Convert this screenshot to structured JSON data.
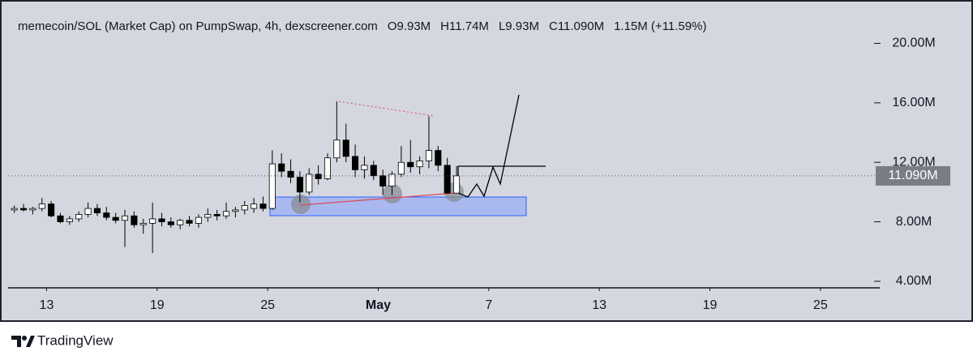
{
  "chart_data": {
    "type": "candlestick",
    "title": "memecoin/SOL (Market Cap) on PumpSwap, 4h, dexscreener.com",
    "ohlc_summary": [
      "O9.93M",
      "H11.74M",
      "L9.93M",
      "C11.090M",
      "1.15M (+11.59%)"
    ],
    "x": [
      0.25,
      0.75,
      1.25,
      1.75,
      2.25,
      2.75,
      3.25,
      3.75,
      4.25,
      4.75,
      5.25,
      5.75,
      6.25,
      6.75,
      7.25,
      7.75,
      8.25,
      8.75,
      9.25,
      9.75,
      10.25,
      10.75,
      11.25,
      11.75,
      12.25,
      12.75,
      13.25,
      13.75,
      14.25,
      14.75,
      15.25,
      15.75,
      16.25,
      16.75,
      17.25,
      17.75,
      18.25,
      18.75,
      19.25,
      19.75,
      20.25,
      20.75,
      21.25,
      21.75,
      22.25,
      22.75,
      23.25,
      23.75,
      24.25
    ],
    "open": [
      8.8,
      8.9,
      8.8,
      8.9,
      9.2,
      8.4,
      8.0,
      8.2,
      8.5,
      8.9,
      8.6,
      8.3,
      8.1,
      8.4,
      7.8,
      7.9,
      8.2,
      8.0,
      7.8,
      8.1,
      7.9,
      8.3,
      8.5,
      8.4,
      8.7,
      8.8,
      8.9,
      9.2,
      8.9,
      11.9,
      11.4,
      11.0,
      10.0,
      11.2,
      10.9,
      12.3,
      13.5,
      12.4,
      11.5,
      11.8,
      11.1,
      10.4,
      11.2,
      12.0,
      11.7,
      12.1,
      12.8,
      11.8,
      9.93
    ],
    "high": [
      9.1,
      9.2,
      9.0,
      9.6,
      9.4,
      8.6,
      8.4,
      8.7,
      9.3,
      9.2,
      9.0,
      8.6,
      8.8,
      8.7,
      8.2,
      9.3,
      8.6,
      8.3,
      8.2,
      8.4,
      8.5,
      8.9,
      8.8,
      9.3,
      9.0,
      9.4,
      9.6,
      9.7,
      12.8,
      12.6,
      12.2,
      11.4,
      11.6,
      11.8,
      12.6,
      16.1,
      14.6,
      13.2,
      12.4,
      12.1,
      11.5,
      11.4,
      13.1,
      13.5,
      12.4,
      15.1,
      13.1,
      12.3,
      11.74
    ],
    "low": [
      8.6,
      8.7,
      8.5,
      8.7,
      8.3,
      7.9,
      7.8,
      8.0,
      8.3,
      8.4,
      8.1,
      7.9,
      6.3,
      7.6,
      7.2,
      5.9,
      7.7,
      7.6,
      7.5,
      7.7,
      7.6,
      8.0,
      8.1,
      8.2,
      8.3,
      8.5,
      8.6,
      8.7,
      8.8,
      11.0,
      10.6,
      9.3,
      9.8,
      10.5,
      10.8,
      12.0,
      12.0,
      11.0,
      10.9,
      10.8,
      9.8,
      9.8,
      11.0,
      11.3,
      11.2,
      11.6,
      11.4,
      9.9,
      9.93
    ],
    "close": [
      8.9,
      8.8,
      8.9,
      9.2,
      8.4,
      8.0,
      8.2,
      8.5,
      8.9,
      8.6,
      8.3,
      8.1,
      8.4,
      7.8,
      7.9,
      8.2,
      8.0,
      7.8,
      8.1,
      7.9,
      8.3,
      8.5,
      8.4,
      8.7,
      8.8,
      9.1,
      9.2,
      8.9,
      11.9,
      11.4,
      11.0,
      10.0,
      11.2,
      10.9,
      12.3,
      13.5,
      12.4,
      11.5,
      11.8,
      11.1,
      10.4,
      11.2,
      12.0,
      11.7,
      12.1,
      12.8,
      11.8,
      9.93,
      11.09
    ],
    "up_color": "#ffffff",
    "down_color": "#000000",
    "wick_color": "#000000",
    "xlim": [
      0,
      47
    ],
    "xticks": [
      {
        "value": 2,
        "label": "13"
      },
      {
        "value": 8,
        "label": "19"
      },
      {
        "value": 14,
        "label": "25"
      },
      {
        "value": 20,
        "label": "May"
      },
      {
        "value": 26,
        "label": "7"
      },
      {
        "value": 32,
        "label": "13"
      },
      {
        "value": 38,
        "label": "19"
      },
      {
        "value": 44,
        "label": "25"
      }
    ],
    "ylim": [
      3.56,
      22.1
    ],
    "yticks": [
      {
        "value": 4,
        "label": "4.00M"
      },
      {
        "value": 8,
        "label": "8.00M"
      },
      {
        "value": 12,
        "label": "12.00M"
      },
      {
        "value": 16,
        "label": "16.00M"
      },
      {
        "value": 20,
        "label": "20.00M"
      }
    ],
    "last_price": {
      "value": 11.09,
      "label": "11.090M"
    }
  },
  "footer": {
    "brand": "TradingView"
  }
}
